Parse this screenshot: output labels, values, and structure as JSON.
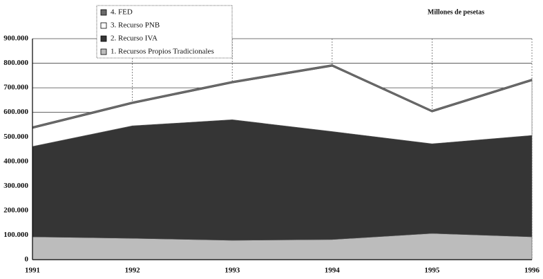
{
  "chart_data": {
    "type": "stacked_area",
    "subtitle": "Millones de pesetas",
    "categories": [
      "1991",
      "1992",
      "1993",
      "1994",
      "1995",
      "1996"
    ],
    "series": [
      {
        "name": "1. Recursos Propios Tradicionales",
        "color": "#bcbcbc",
        "values": [
          93000,
          87000,
          79000,
          82000,
          107000,
          93000
        ]
      },
      {
        "name": "2. Recurso IVA",
        "color": "#353535",
        "values": [
          368000,
          458000,
          491000,
          440000,
          365000,
          413000
        ]
      },
      {
        "name": "3. Recurso PNB",
        "color": "#ffffff",
        "values": [
          73000,
          90000,
          149000,
          265000,
          129000,
          222000
        ]
      },
      {
        "name": "4. FED",
        "color": "#6a6a6a",
        "values": [
          8000,
          8000,
          8000,
          8000,
          8000,
          8000
        ]
      }
    ],
    "ylim": [
      0,
      900000
    ],
    "yticks": [
      0,
      {
        "value": 100000,
        "label": "100.000"
      },
      {
        "value": 200000,
        "label": "200.000"
      },
      {
        "value": 300000,
        "label": "300.000"
      },
      {
        "value": 400000,
        "label": "400.000"
      },
      {
        "value": 500000,
        "label": "500.000"
      },
      {
        "value": 600000,
        "label": "600.000"
      },
      {
        "value": 700000,
        "label": "700.000"
      },
      {
        "value": 800000,
        "label": "800.000"
      },
      {
        "value": 900000,
        "label": "900.000"
      }
    ],
    "grid": true
  }
}
